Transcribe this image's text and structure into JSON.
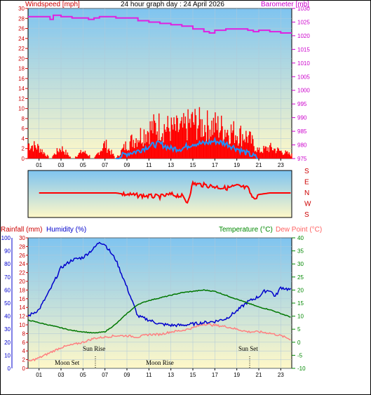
{
  "title": "24 hour graph day : 24 April 2026",
  "colors": {
    "sky_top": "#7fc4f0",
    "sky_bottom": "#fff8c8",
    "windspeed": "#ff0000",
    "wind_avg": "#1e90ff",
    "barometer": "#e020e0",
    "direction": "#ff0000",
    "humidity": "#0000cc",
    "temperature": "#007700",
    "dewpoint": "#ff7070",
    "axis_left": "#cc0000",
    "axis_humidity": "#0000cc",
    "axis_temp": "#008800",
    "axis_baro": "#cc00cc"
  },
  "x_ticks": [
    "01",
    "03",
    "05",
    "07",
    "09",
    "11",
    "13",
    "15",
    "17",
    "19",
    "21",
    "23"
  ],
  "chart_data": [
    {
      "type": "line",
      "name": "wind-barometer",
      "left_label": "Windspeed [mph]",
      "right_label": "Barometer [mb]",
      "ylim_left": [
        0,
        30
      ],
      "ylim_right": [
        975,
        1030
      ],
      "left_ticks": [
        "30",
        "28",
        "26",
        "24",
        "22",
        "20",
        "18",
        "16",
        "14",
        "12",
        "10",
        "8",
        "6",
        "4",
        "2",
        "0"
      ],
      "right_ticks": [
        "1030",
        "1025",
        "1020",
        "1015",
        "1010",
        "1005",
        "1000",
        "995",
        "990",
        "985",
        "980",
        "975"
      ],
      "series": [
        {
          "name": "Windspeed",
          "x": [
            0,
            1,
            2,
            3,
            4,
            5,
            6,
            7,
            8,
            9,
            10,
            11,
            12,
            13,
            14,
            15,
            16,
            17,
            18,
            19,
            20,
            21,
            22,
            23,
            24
          ],
          "gust": [
            4,
            3,
            0,
            3,
            0,
            2,
            0,
            4,
            0,
            4,
            6,
            8,
            9,
            8,
            8,
            10,
            9,
            9,
            8,
            7,
            6,
            2,
            3,
            2,
            1
          ],
          "avg": [
            0,
            0,
            0,
            0,
            0,
            0,
            0,
            0,
            0,
            1,
            1.5,
            2.5,
            3,
            2,
            2,
            3,
            3,
            3.5,
            3,
            2,
            1,
            0,
            0,
            0,
            0
          ]
        },
        {
          "name": "Barometer",
          "x": [
            0,
            2,
            2.3,
            3,
            4,
            5.5,
            6,
            6.5,
            7,
            8,
            9,
            10,
            11,
            12,
            13,
            14,
            15,
            16,
            16.5,
            17,
            18,
            19,
            20,
            20.5,
            21,
            22,
            23,
            24
          ],
          "y": [
            1027,
            1026,
            1027.5,
            1027,
            1026.5,
            1026,
            1026.5,
            1027,
            1027,
            1026.5,
            1026.5,
            1025.5,
            1025,
            1024.5,
            1024,
            1023.5,
            1022.5,
            1021.5,
            1021,
            1022,
            1022.5,
            1022.5,
            1022,
            1021.5,
            1022,
            1021.5,
            1021,
            1021
          ]
        }
      ]
    },
    {
      "type": "line",
      "name": "wind-direction",
      "compass": [
        "S",
        "E",
        "N",
        "W",
        "S"
      ],
      "series": [
        {
          "name": "Direction",
          "x": [
            0,
            1,
            2,
            3,
            4,
            5,
            6,
            7,
            8,
            9,
            10,
            11,
            12,
            13,
            14,
            14.5,
            15,
            16,
            17,
            18,
            19,
            20,
            20.5,
            21,
            22,
            23,
            24
          ],
          "deg": [
            0,
            0,
            0,
            0,
            0,
            0,
            0,
            0,
            0,
            5,
            8,
            10,
            12,
            5,
            10,
            30,
            -30,
            -25,
            -20,
            -15,
            -22,
            -15,
            20,
            5,
            0,
            0,
            0
          ]
        }
      ]
    },
    {
      "type": "line",
      "name": "temperature-humidity",
      "left_label_rain": "Rainfall (mm)",
      "left_label_humidity": "Humidity (%)",
      "right_label_temp": "Temperature (°C)",
      "right_label_dew": "Dew Point (°C)",
      "ylim_rain": [
        0,
        30
      ],
      "ylim_humidity": [
        0,
        100
      ],
      "ylim_temp": [
        -10,
        40
      ],
      "rain_ticks": [
        "30",
        "28",
        "26",
        "24",
        "22",
        "20",
        "18",
        "16",
        "14",
        "12",
        "10",
        "8",
        "6",
        "4",
        "2",
        "0"
      ],
      "humidity_ticks": [
        "100",
        "90",
        "80",
        "70",
        "60",
        "50",
        "40",
        "30",
        "20",
        "10",
        "0"
      ],
      "temp_ticks": [
        "40",
        "35",
        "30",
        "25",
        "20",
        "15",
        "10",
        "5",
        "0",
        "-5",
        "-10"
      ],
      "annotations": {
        "sun_rise": "Sun Rise",
        "sun_set": "Sun Set",
        "moon_set": "Moon Set",
        "moon_rise": "Moon Rise"
      },
      "series": [
        {
          "name": "Humidity",
          "x": [
            0,
            1,
            2,
            3,
            4,
            5,
            6,
            6.5,
            7,
            8,
            9,
            10,
            11,
            12,
            13,
            14,
            15,
            16,
            17,
            18,
            19,
            20,
            21,
            21.5,
            22,
            22.5,
            23,
            24
          ],
          "y": [
            40,
            45,
            60,
            77,
            83,
            85,
            92,
            97,
            95,
            83,
            62,
            40,
            37,
            34,
            33,
            33,
            34,
            35,
            36,
            38,
            44,
            51,
            55,
            59,
            60,
            55,
            62,
            60
          ]
        },
        {
          "name": "Temperature",
          "x": [
            0,
            1,
            2,
            3,
            4,
            5,
            6,
            7,
            8,
            9,
            10,
            11,
            12,
            13,
            14,
            15,
            16,
            17,
            18,
            19,
            20,
            21,
            22,
            23,
            24
          ],
          "y": [
            8.5,
            7.5,
            6.5,
            5.5,
            4.5,
            4,
            3.5,
            4,
            7,
            11,
            14.5,
            16,
            17,
            18,
            19,
            19.5,
            20,
            19.5,
            18,
            16.5,
            15,
            13.5,
            12.5,
            11,
            9.5
          ]
        },
        {
          "name": "Dew Point",
          "x": [
            0,
            1,
            2,
            3,
            4,
            5,
            6,
            7,
            8,
            9,
            10,
            11,
            12,
            13,
            14,
            15,
            16,
            17,
            18,
            19,
            20,
            21,
            22,
            23,
            24
          ],
          "y": [
            -7.5,
            -6,
            -4,
            -2,
            -1,
            0,
            1.5,
            2,
            2.5,
            2.5,
            2,
            3,
            3,
            4,
            4.5,
            5.5,
            7,
            6.5,
            6,
            5,
            4,
            4,
            3.5,
            2.5,
            1
          ]
        }
      ]
    }
  ]
}
